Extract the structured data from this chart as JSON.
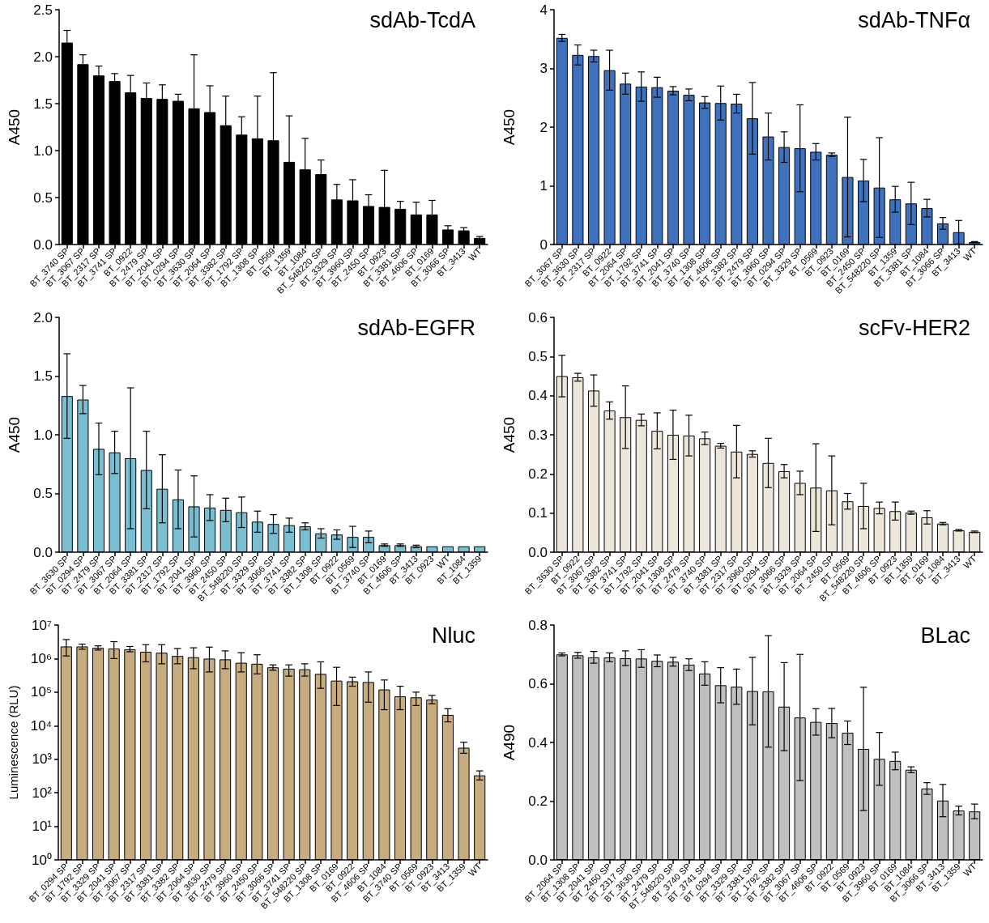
{
  "chart_data": [
    {
      "type": "bar",
      "title": "sdAb-TcdA",
      "ylabel": "A450",
      "color": "#000000",
      "categories": [
        "BT_3740 SP",
        "BT_3067 SP",
        "BT_2317 SP",
        "BT_3741 SP",
        "BT_0922",
        "BT_2479 SP",
        "BT_2041 SP",
        "BT_0294 SP",
        "BT_3630 SP",
        "BT_2064 SP",
        "BT_3382 SP",
        "BT_1792 SP",
        "BT_1308 SP",
        "BT_0569",
        "BT_1359",
        "BT_1084",
        "BT_548220 SP",
        "BT_3329 SP",
        "BT_3960 SP",
        "BT_2450 SP",
        "BT_0923",
        "BT_3381 SP",
        "BT_4606 SP",
        "BT_0169",
        "BT_3066 SP",
        "BT_3413",
        "WT"
      ],
      "values": [
        2.15,
        1.92,
        1.8,
        1.74,
        1.62,
        1.56,
        1.55,
        1.53,
        1.45,
        1.41,
        1.27,
        1.17,
        1.13,
        1.11,
        0.88,
        0.8,
        0.75,
        0.48,
        0.47,
        0.41,
        0.4,
        0.38,
        0.32,
        0.32,
        0.16,
        0.15,
        0.07
      ],
      "errors": [
        0.13,
        0.1,
        0.1,
        0.08,
        0.18,
        0.16,
        0.15,
        0.07,
        0.57,
        0.28,
        0.31,
        0.19,
        0.45,
        0.72,
        0.49,
        0.33,
        0.15,
        0.16,
        0.22,
        0.12,
        0.39,
        0.08,
        0.13,
        0.15,
        0.04,
        0.03,
        0.015
      ],
      "ylim": [
        0,
        2.5
      ],
      "yticks": [
        {
          "value": 0,
          "label": "0.0"
        },
        {
          "value": 0.5,
          "label": "0.5"
        },
        {
          "value": 1,
          "label": "1.0"
        },
        {
          "value": 1.5,
          "label": "1.5"
        },
        {
          "value": 2,
          "label": "2.0"
        },
        {
          "value": 2.5,
          "label": "2.5"
        }
      ]
    },
    {
      "type": "bar",
      "title": "sdAb-TNFα",
      "ylabel": "A450",
      "color": "#3f72bd",
      "categories": [
        "BT_3067 SP",
        "BT_3630 SP",
        "BT_2317 SP",
        "BT_0922",
        "BT_2064 SP",
        "BT_1792 SP",
        "BT_3741 SP",
        "BT_2041 SP",
        "BT_3740 SP",
        "BT_1308 SP",
        "BT_4606 SP",
        "BT_3382 SP",
        "BT_2479 SP",
        "BT_3960 SP",
        "BT_0294 SP",
        "BT_3329 SP",
        "BT_0569",
        "BT_0923",
        "BT_0169",
        "BT_2450 SP",
        "BT_548220 SP",
        "BT_1359",
        "BT_3381 SP",
        "BT_1084",
        "BT_3066 SP",
        "BT_3413",
        "WT"
      ],
      "values": [
        3.52,
        3.23,
        3.21,
        2.97,
        2.74,
        2.69,
        2.68,
        2.62,
        2.55,
        2.42,
        2.41,
        2.4,
        2.15,
        1.84,
        1.66,
        1.64,
        1.58,
        1.53,
        1.15,
        1.09,
        0.97,
        0.77,
        0.7,
        0.62,
        0.36,
        0.21,
        0.04
      ],
      "errors": [
        0.06,
        0.17,
        0.1,
        0.34,
        0.18,
        0.25,
        0.17,
        0.07,
        0.1,
        0.1,
        0.29,
        0.16,
        0.61,
        0.4,
        0.26,
        0.74,
        0.14,
        0.03,
        1.02,
        0.36,
        0.85,
        0.22,
        0.36,
        0.15,
        0.1,
        0.2,
        0.01
      ],
      "ylim": [
        0,
        4
      ],
      "yticks": [
        0,
        1,
        2,
        3,
        4
      ]
    },
    {
      "type": "bar",
      "title": "sdAb-EGFR",
      "ylabel": "A450",
      "color": "#79bfd1",
      "categories": [
        "BT_3630 SP",
        "BT_0294 SP",
        "BT_2479 SP",
        "BT_3067 SP",
        "BT_2064 SP",
        "BT_3381 SP",
        "BT_2317 SP",
        "BT_1792 SP",
        "BT_2041 SP",
        "BT_3960 SP",
        "BT_2450 SP",
        "BT_548220 SP",
        "BT_3329 SP",
        "BT_3066 SP",
        "BT_3741 SP",
        "BT_3382 SP",
        "BT_1308 SP",
        "BT_0922",
        "BT_0569",
        "BT_3740 SP",
        "BT_0169",
        "BT_4606 SP",
        "BT_3413",
        "BT_0923",
        "WT",
        "BT_1084",
        "BT_1359"
      ],
      "values": [
        1.33,
        1.3,
        0.88,
        0.85,
        0.8,
        0.7,
        0.54,
        0.45,
        0.39,
        0.38,
        0.36,
        0.34,
        0.26,
        0.24,
        0.23,
        0.22,
        0.16,
        0.15,
        0.13,
        0.13,
        0.06,
        0.06,
        0.05,
        0.05,
        0.05,
        0.05,
        0.05
      ],
      "errors": [
        0.36,
        0.12,
        0.22,
        0.18,
        0.6,
        0.33,
        0.29,
        0.25,
        0.26,
        0.11,
        0.1,
        0.13,
        0.09,
        0.08,
        0.06,
        0.03,
        0.04,
        0.04,
        0.09,
        0.05,
        0.01,
        0.01,
        0.01,
        null,
        null,
        null,
        null
      ],
      "ylim": [
        0,
        2
      ],
      "yticks": [
        {
          "value": 0,
          "label": "0.0"
        },
        {
          "value": 0.5,
          "label": "0.5"
        },
        {
          "value": 1,
          "label": "1.0"
        },
        {
          "value": 1.5,
          "label": "1.5"
        },
        {
          "value": 2,
          "label": "2.0"
        }
      ]
    },
    {
      "type": "bar",
      "title": "scFv-HER2",
      "ylabel": "A450",
      "color": "#ede6da",
      "categories": [
        "BT_3630 SP",
        "BT_0922",
        "BT_3067 SP",
        "BT_3382 SP",
        "BT_3741 SP",
        "BT_1792 SP",
        "BT_2041 SP",
        "BT_1308 SP",
        "BT_2479 SP",
        "BT_3740 SP",
        "BT_3381 SP",
        "BT_2317 SP",
        "BT_3960 SP",
        "BT_0294 SP",
        "BT_3066 SP",
        "BT_3329 SP",
        "BT_2064 SP",
        "BT_2450 SP",
        "BT_0569",
        "BT_548220 SP",
        "BT_4606 SP",
        "BT_0923",
        "BT_1359",
        "BT_0169",
        "BT_1084",
        "BT_3413",
        "WT"
      ],
      "values": [
        0.45,
        0.447,
        0.413,
        0.362,
        0.345,
        0.338,
        0.31,
        0.3,
        0.298,
        0.291,
        0.272,
        0.257,
        0.251,
        0.228,
        0.207,
        0.177,
        0.165,
        0.158,
        0.13,
        0.118,
        0.113,
        0.105,
        0.101,
        0.089,
        0.073,
        0.056,
        0.052
      ],
      "errors": [
        0.053,
        0.01,
        0.04,
        0.022,
        0.08,
        0.015,
        0.046,
        0.063,
        0.052,
        0.016,
        0.006,
        0.067,
        0.008,
        0.063,
        0.017,
        0.03,
        0.112,
        0.088,
        0.02,
        0.058,
        0.015,
        0.023,
        0.004,
        0.017,
        0.003,
        0.002,
        0.002
      ],
      "ylim": [
        0,
        0.6
      ],
      "yticks": [
        {
          "value": 0,
          "label": "0.0"
        },
        0.1,
        0.2,
        0.3,
        0.4,
        0.5,
        0.6
      ]
    },
    {
      "type": "bar",
      "title": "Nluc",
      "ylabel": "Luminescence (RLU)",
      "color": "#c6ac7f",
      "log": true,
      "categories": [
        "BT_0294 SP",
        "BT_1792 SP",
        "BT_3329 SP",
        "BT_2041 SP",
        "BT_3067 SP",
        "BT_2317 SP",
        "BT_3381 SP",
        "BT_3382 SP",
        "BT_2064 SP",
        "BT_3630 SP",
        "BT_2479 SP",
        "BT_3960 SP",
        "BT_2450 SP",
        "BT_3066 SP",
        "BT_3741 SP",
        "BT_548220 SP",
        "BT_1308 SP",
        "BT_0169",
        "BT_0922",
        "BT_4606 SP",
        "BT_1084",
        "BT_3740 SP",
        "BT_0569",
        "BT_0923",
        "BT_3413",
        "BT_1359",
        "WT"
      ],
      "values": [
        2300000,
        2300000,
        2100000,
        2000000,
        1900000,
        1600000,
        1500000,
        1200000,
        1100000,
        1000000,
        950000,
        750000,
        700000,
        550000,
        500000,
        480000,
        350000,
        220000,
        210000,
        200000,
        120000,
        75000,
        70000,
        60000,
        21000,
        2200,
        330
      ],
      "errors": [
        [
          1200000,
          3700000
        ],
        [
          1900000,
          2700000
        ],
        [
          1800000,
          2400000
        ],
        [
          1000000,
          3200000
        ],
        [
          1600000,
          2300000
        ],
        [
          800000,
          2600000
        ],
        [
          700000,
          2600000
        ],
        [
          700000,
          2000000
        ],
        [
          500000,
          2100000
        ],
        [
          400000,
          2200000
        ],
        [
          500000,
          1700000
        ],
        [
          400000,
          1500000
        ],
        [
          350000,
          1300000
        ],
        [
          450000,
          650000
        ],
        [
          300000,
          650000
        ],
        [
          300000,
          700000
        ],
        [
          130000,
          800000
        ],
        [
          40000,
          550000
        ],
        [
          150000,
          280000
        ],
        [
          50000,
          400000
        ],
        [
          30000,
          230000
        ],
        [
          30000,
          150000
        ],
        [
          40000,
          100000
        ],
        [
          45000,
          80000
        ],
        [
          13000,
          32000
        ],
        [
          1500,
          3200
        ],
        [
          240,
          450
        ]
      ],
      "ylim": [
        1,
        10000000
      ],
      "yticks": [
        {
          "value": 1,
          "label": "10⁰"
        },
        {
          "value": 10,
          "label": "10¹"
        },
        {
          "value": 100,
          "label": "10²"
        },
        {
          "value": 1000,
          "label": "10³"
        },
        {
          "value": 10000,
          "label": "10⁴"
        },
        {
          "value": 100000,
          "label": "10⁵"
        },
        {
          "value": 1000000,
          "label": "10⁶"
        },
        {
          "value": 10000000,
          "label": "10⁷"
        }
      ]
    },
    {
      "type": "bar",
      "title": "BLac",
      "ylabel": "A490",
      "color": "#c0c0c0",
      "categories": [
        "BT_2064 SP",
        "BT_1308 SP",
        "BT_2041 SP",
        "BT_2450 SP",
        "BT_2317 SP",
        "BT_3630 SP",
        "BT_2479 SP",
        "BT_548220 SP",
        "BT_3740 SP",
        "BT_3741 SP",
        "BT_0294 SP",
        "BT_3329 SP",
        "BT_3381 SP",
        "BT_1792 SP",
        "BT_3382 SP",
        "BT_3067 SP",
        "BT_4606 SP",
        "BT_0922",
        "BT_0569",
        "BT_0923",
        "BT_3960 SP",
        "BT_0169",
        "BT_1084",
        "BT_3066 SP",
        "BT_3413",
        "BT_1359",
        "WT"
      ],
      "values": [
        0.7,
        0.697,
        0.69,
        0.69,
        0.687,
        0.686,
        0.678,
        0.675,
        0.665,
        0.635,
        0.595,
        0.59,
        0.575,
        0.574,
        0.522,
        0.485,
        0.47,
        0.466,
        0.433,
        0.378,
        0.344,
        0.337,
        0.307,
        0.243,
        0.202,
        0.168,
        0.165
      ],
      "errors": [
        0.005,
        0.01,
        0.02,
        0.015,
        0.025,
        0.03,
        0.02,
        0.015,
        0.02,
        0.04,
        0.06,
        0.06,
        0.115,
        0.19,
        0.15,
        0.215,
        0.045,
        0.05,
        0.04,
        0.21,
        0.09,
        0.03,
        0.01,
        0.02,
        0.055,
        0.015,
        0.025
      ],
      "ylim": [
        0,
        0.8
      ],
      "yticks": [
        {
          "value": 0,
          "label": "0.0"
        },
        {
          "value": 0.2,
          "label": "0.2"
        },
        {
          "value": 0.4,
          "label": "0.4"
        },
        {
          "value": 0.6,
          "label": "0.6"
        },
        {
          "value": 0.8,
          "label": "0.8"
        }
      ]
    }
  ]
}
